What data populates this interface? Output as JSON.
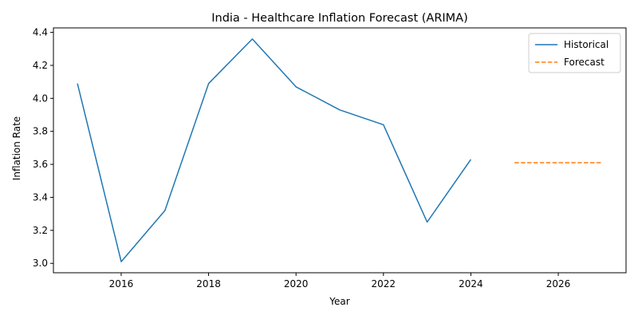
{
  "chart_data": {
    "type": "line",
    "title": "India - Healthcare Inflation Forecast (ARIMA)",
    "xlabel": "Year",
    "ylabel": "Inflation Rate",
    "xlim": [
      2014.45,
      2027.55
    ],
    "ylim": [
      2.943,
      4.427
    ],
    "xticks": [
      2016,
      2018,
      2020,
      2022,
      2024,
      2026
    ],
    "yticks": [
      3.0,
      3.2,
      3.4,
      3.6,
      3.8,
      4.0,
      4.2,
      4.4
    ],
    "grid": false,
    "legend_position": "top-right",
    "series": [
      {
        "name": "Historical",
        "style": "solid",
        "color": "#1f77b4",
        "x": [
          2015,
          2016,
          2017,
          2018,
          2019,
          2020,
          2021,
          2022,
          2023,
          2024
        ],
        "values": [
          4.09,
          3.01,
          3.32,
          4.09,
          4.36,
          4.07,
          3.93,
          3.84,
          3.25,
          3.63
        ]
      },
      {
        "name": "Forecast",
        "style": "dashed",
        "color": "#ff7f0e",
        "x": [
          2025,
          2026,
          2027
        ],
        "values": [
          3.61,
          3.61,
          3.61
        ]
      }
    ]
  }
}
